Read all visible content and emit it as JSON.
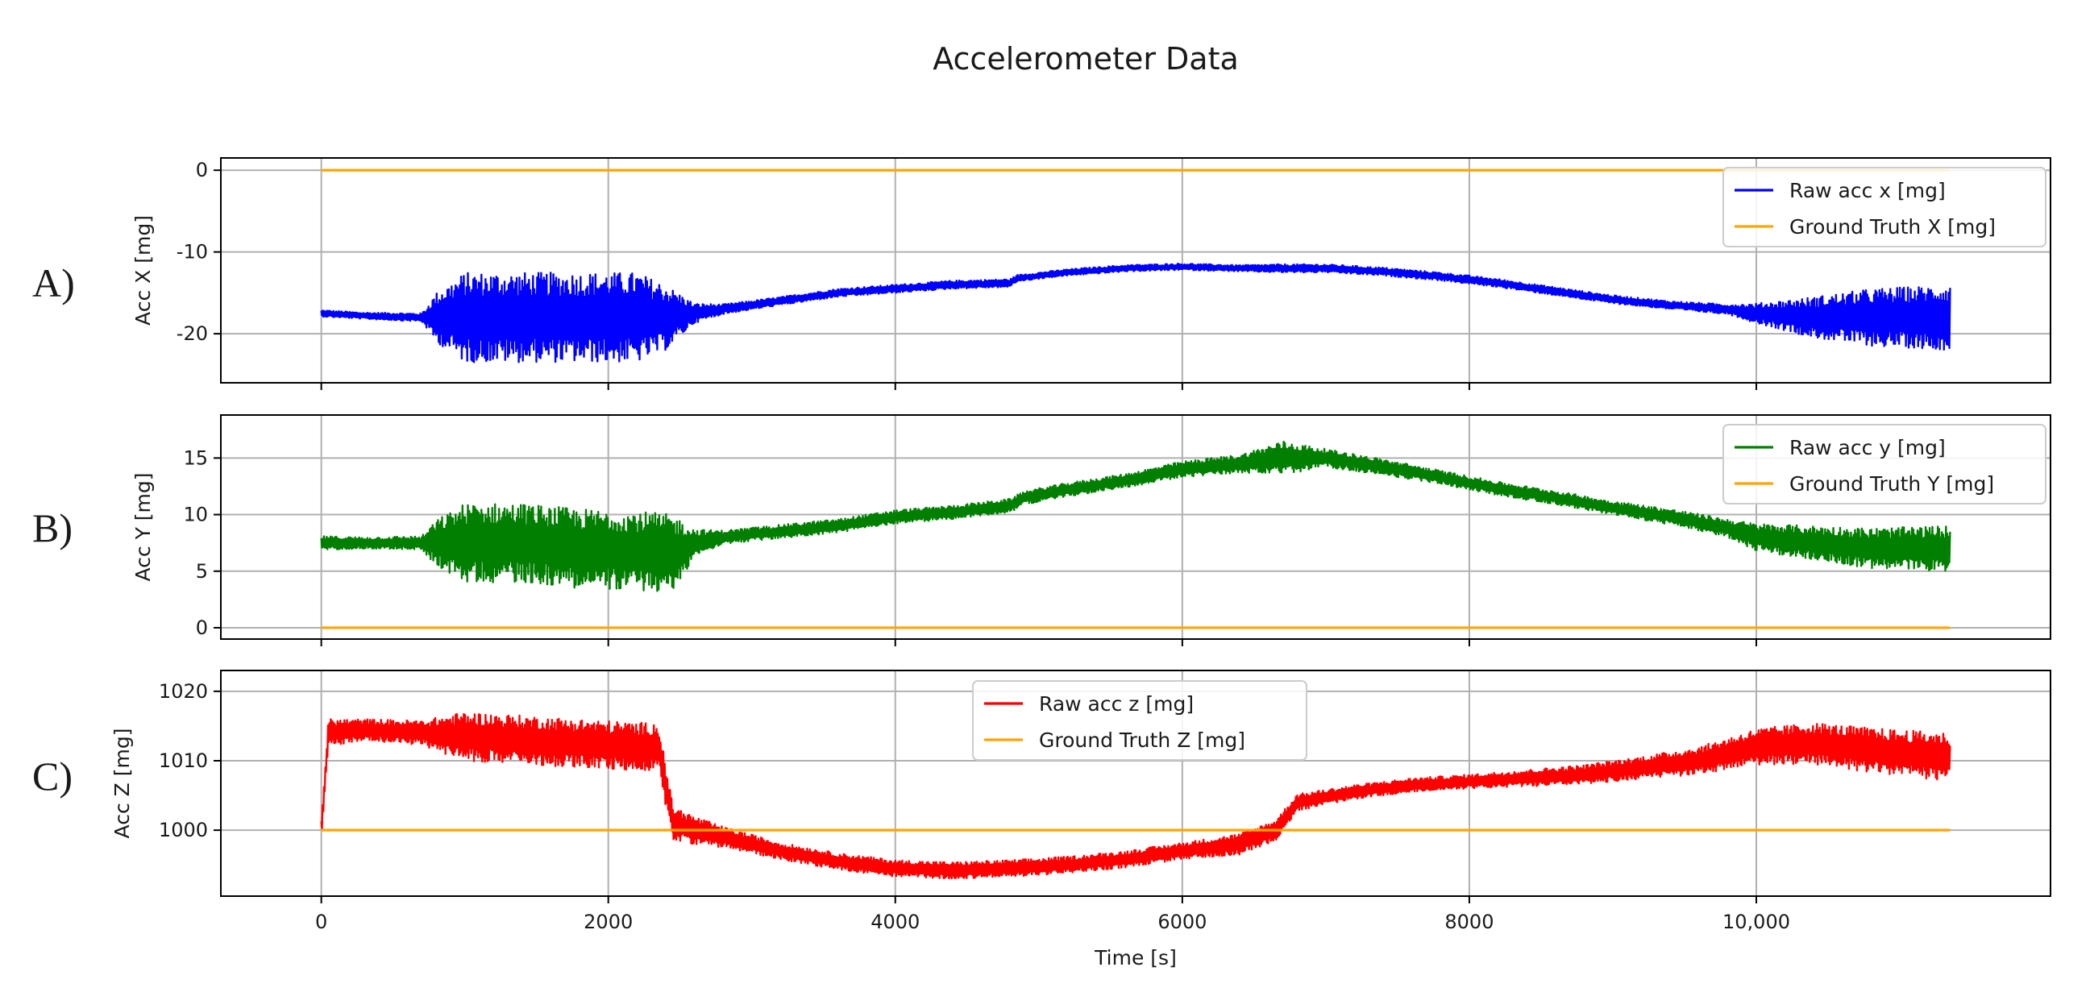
{
  "chart_data": [
    {
      "type": "line",
      "panel_label": "A)",
      "ylabel": "Acc X [mg]",
      "ylim": [
        -26,
        1.5
      ],
      "yticks": [
        0,
        -10,
        -20
      ],
      "ytick_labels": [
        "0",
        "-10",
        "-20"
      ],
      "xlim": [
        -700,
        12050
      ],
      "grid": true,
      "legend": "top-right",
      "series": [
        {
          "name": "Raw acc x [mg]",
          "color": "#0000ff",
          "x": [
            0,
            300,
            700,
            800,
            1000,
            1400,
            1800,
            2200,
            2400,
            2600,
            2800,
            3200,
            3600,
            4000,
            4400,
            4800,
            4850,
            5200,
            5600,
            6000,
            6400,
            6700,
            7000,
            7400,
            7800,
            8200,
            8600,
            9000,
            9400,
            9800,
            10000,
            10400,
            10800,
            11350
          ],
          "center": [
            -17.5,
            -17.8,
            -18.0,
            -18.0,
            -18.0,
            -18.0,
            -18.0,
            -18.0,
            -18.0,
            -17.5,
            -17.0,
            -16.0,
            -15.0,
            -14.5,
            -14.0,
            -13.8,
            -13.2,
            -12.5,
            -12.0,
            -11.8,
            -12.0,
            -12.0,
            -12.0,
            -12.4,
            -13.0,
            -13.8,
            -14.8,
            -15.8,
            -16.5,
            -17.0,
            -17.5,
            -18.0,
            -18.0,
            -18.0
          ],
          "amplitude": [
            0.4,
            0.4,
            0.5,
            3.0,
            5.5,
            5.5,
            5.5,
            5.5,
            4.0,
            1.2,
            0.6,
            0.5,
            0.5,
            0.5,
            0.5,
            0.5,
            0.4,
            0.4,
            0.4,
            0.4,
            0.4,
            0.5,
            0.5,
            0.5,
            0.5,
            0.5,
            0.5,
            0.5,
            0.5,
            0.6,
            1.2,
            2.5,
            3.5,
            4.0
          ]
        },
        {
          "name": "Ground Truth X [mg]",
          "color": "#ffa500",
          "x": [
            0,
            11350
          ],
          "values": [
            0,
            0
          ]
        }
      ]
    },
    {
      "type": "line",
      "panel_label": "B)",
      "ylabel": "Acc Y [mg]",
      "ylim": [
        -1,
        18.8
      ],
      "yticks": [
        0,
        5,
        10,
        15
      ],
      "ytick_labels": [
        "0",
        "5",
        "10",
        "15"
      ],
      "xlim": [
        -700,
        12050
      ],
      "grid": true,
      "legend": "top-right",
      "series": [
        {
          "name": "Raw acc y [mg]",
          "color": "#007f00",
          "x": [
            0,
            300,
            700,
            800,
            1000,
            1400,
            1800,
            2200,
            2450,
            2600,
            2800,
            3200,
            3600,
            4000,
            4400,
            4800,
            4900,
            5200,
            5600,
            6000,
            6400,
            6700,
            7000,
            7400,
            7800,
            8200,
            8600,
            9000,
            9400,
            9800,
            10000,
            10400,
            10800,
            11350
          ],
          "center": [
            7.5,
            7.5,
            7.5,
            7.5,
            7.5,
            7.5,
            7.0,
            6.8,
            6.5,
            7.5,
            8.0,
            8.5,
            9.0,
            9.8,
            10.2,
            10.8,
            11.5,
            12.2,
            13.0,
            14.0,
            14.5,
            15.0,
            15.0,
            14.2,
            13.3,
            12.3,
            11.5,
            10.6,
            9.8,
            8.8,
            8.0,
            7.5,
            7.0,
            7.0
          ],
          "amplitude": [
            0.6,
            0.5,
            0.6,
            2.0,
            3.5,
            3.5,
            3.5,
            3.5,
            3.5,
            1.2,
            0.6,
            0.6,
            0.6,
            0.6,
            0.6,
            0.6,
            0.6,
            0.6,
            0.6,
            0.7,
            0.8,
            1.5,
            0.8,
            0.7,
            0.6,
            0.6,
            0.6,
            0.6,
            0.7,
            0.8,
            1.2,
            1.5,
            1.8,
            2.0
          ]
        },
        {
          "name": "Ground Truth Y [mg]",
          "color": "#ffa500",
          "x": [
            0,
            11350
          ],
          "values": [
            0,
            0
          ]
        }
      ]
    },
    {
      "type": "line",
      "panel_label": "C)",
      "ylabel": "Acc Z [mg]",
      "ylim": [
        990.5,
        1023
      ],
      "yticks": [
        1000,
        1010,
        1020
      ],
      "ytick_labels": [
        "1000",
        "1010",
        "1020"
      ],
      "xlim": [
        -700,
        12050
      ],
      "grid": true,
      "legend": "top-center",
      "series": [
        {
          "name": "Raw acc z [mg]",
          "color": "#ff0000",
          "x": [
            0,
            50,
            300,
            700,
            1000,
            1400,
            1800,
            2200,
            2350,
            2450,
            2600,
            2800,
            3200,
            3600,
            4000,
            4400,
            4800,
            5200,
            5600,
            6000,
            6400,
            6650,
            6800,
            7200,
            7600,
            8000,
            8400,
            8800,
            9200,
            9600,
            10000,
            10400,
            10800,
            11350
          ],
          "center": [
            1000,
            1014,
            1014.5,
            1014,
            1013.5,
            1013,
            1012.5,
            1012,
            1012,
            1001,
            1000,
            999,
            997,
            995.5,
            994.5,
            994.2,
            994.5,
            995,
            995.8,
            997,
            998,
            1000,
            1004,
            1005.5,
            1006.5,
            1007,
            1007.5,
            1008,
            1009,
            1010,
            1012,
            1012.5,
            1011.5,
            1010.5
          ],
          "amplitude": [
            1.5,
            2.0,
            1.5,
            1.8,
            3.5,
            3.5,
            3.5,
            3.5,
            3.5,
            2.5,
            2.0,
            1.5,
            1.2,
            1.2,
            1.2,
            1.2,
            1.2,
            1.2,
            1.2,
            1.2,
            1.5,
            1.5,
            1.2,
            1.0,
            1.0,
            1.0,
            1.2,
            1.4,
            1.6,
            2.0,
            2.6,
            3.0,
            3.2,
            3.5
          ]
        },
        {
          "name": "Ground Truth Z [mg]",
          "color": "#ffa500",
          "x": [
            0,
            11350
          ],
          "values": [
            1000,
            1000
          ]
        }
      ]
    }
  ],
  "figure": {
    "title": "Accelerometer Data",
    "xlabel": "Time [s]",
    "xticks": [
      0,
      2000,
      4000,
      6000,
      8000,
      10000
    ],
    "xtick_labels": [
      "0",
      "2000",
      "4000",
      "6000",
      "8000",
      "10,000"
    ],
    "shared_x": true
  }
}
